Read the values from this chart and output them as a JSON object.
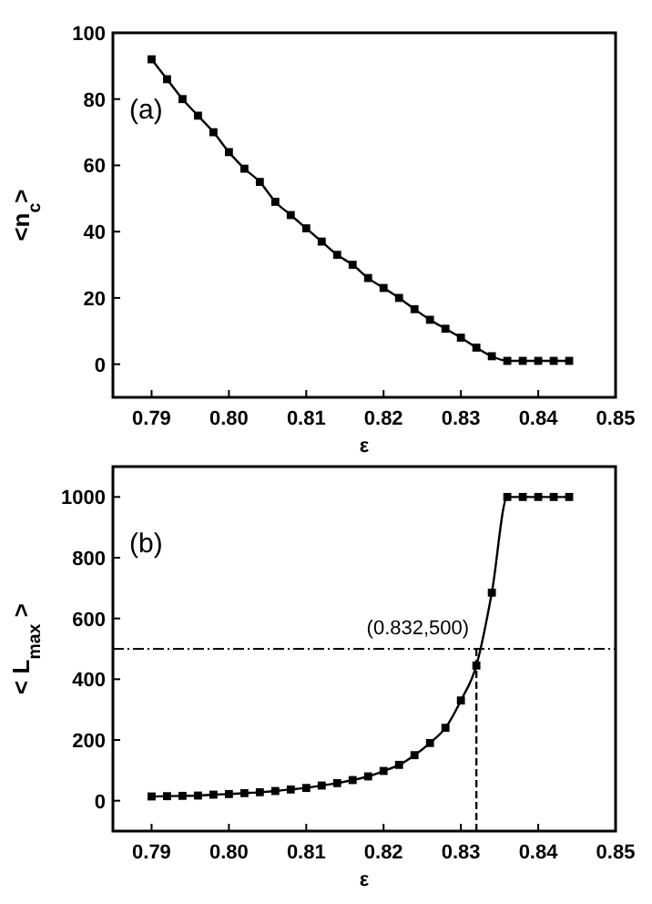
{
  "chart_data": [
    {
      "type": "line",
      "xlabel": "ε",
      "ylabel": "<n$_{c}$>",
      "annotations": [
        "(a)"
      ],
      "marker": "square",
      "x": [
        0.79,
        0.792,
        0.794,
        0.796,
        0.798,
        0.8,
        0.802,
        0.804,
        0.806,
        0.808,
        0.81,
        0.812,
        0.814,
        0.816,
        0.818,
        0.82,
        0.822,
        0.824,
        0.826,
        0.828,
        0.83,
        0.832,
        0.834,
        0.836,
        0.838,
        0.84,
        0.842,
        0.844
      ],
      "series": [
        {
          "color": "#000000",
          "values": [
            92,
            86,
            80,
            75,
            70,
            64,
            59,
            55,
            49,
            45,
            41,
            37,
            33,
            30,
            26,
            23,
            20,
            16.6,
            13.4,
            10.7,
            8,
            5,
            2.4,
            1,
            1,
            1,
            1,
            1
          ]
        }
      ],
      "xlim": [
        0.785,
        0.85
      ],
      "xticks": [
        {
          "value": 0.79,
          "label": "0.79"
        },
        {
          "value": 0.8,
          "label": "0.80"
        },
        {
          "value": 0.81,
          "label": "0.81"
        },
        {
          "value": 0.82,
          "label": "0.82"
        },
        {
          "value": 0.83,
          "label": "0.83"
        },
        {
          "value": 0.84,
          "label": "0.84"
        },
        {
          "value": 0.85,
          "label": "0.85"
        }
      ],
      "ylim": [
        -10,
        100
      ],
      "yticks": [
        0,
        20,
        40,
        60,
        80,
        100
      ]
    },
    {
      "type": "line",
      "xlabel": "ε",
      "ylabel": "< L$_{max}$ >",
      "annotations": [
        "(b)",
        {
          "text": "(0.832,500)",
          "x": 0.832,
          "y": 500
        }
      ],
      "marker": "square",
      "x": [
        0.79,
        0.792,
        0.794,
        0.796,
        0.798,
        0.8,
        0.802,
        0.804,
        0.806,
        0.808,
        0.81,
        0.812,
        0.814,
        0.816,
        0.818,
        0.82,
        0.822,
        0.824,
        0.826,
        0.828,
        0.83,
        0.832,
        0.834,
        0.836,
        0.838,
        0.84,
        0.842,
        0.844
      ],
      "series": [
        {
          "color": "#000000",
          "values": [
            14,
            15,
            16,
            17,
            20,
            22,
            25,
            28,
            32,
            37,
            42,
            50,
            58,
            68,
            80,
            98,
            118,
            150,
            190,
            240,
            330,
            445,
            685,
            1000,
            1000,
            1000,
            1000,
            1000
          ]
        }
      ],
      "ref_lines": [
        {
          "axis": "y",
          "value": 500,
          "line_style": "dashdot"
        },
        {
          "axis": "x",
          "value": 0.832,
          "line_style": "dashed"
        }
      ],
      "xlim": [
        0.785,
        0.85
      ],
      "xticks": [
        {
          "value": 0.79,
          "label": "0.79"
        },
        {
          "value": 0.8,
          "label": "0.80"
        },
        {
          "value": 0.81,
          "label": "0.81"
        },
        {
          "value": 0.82,
          "label": "0.82"
        },
        {
          "value": 0.83,
          "label": "0.83"
        },
        {
          "value": 0.84,
          "label": "0.84"
        },
        {
          "value": 0.85,
          "label": "0.85"
        }
      ],
      "ylim": [
        -100,
        1100
      ],
      "yticks": [
        0,
        200,
        400,
        600,
        800,
        1000
      ]
    }
  ]
}
